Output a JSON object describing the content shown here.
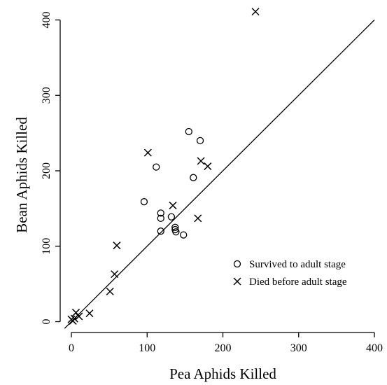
{
  "chart_data": {
    "type": "scatter",
    "title": "",
    "xlabel": "Pea Aphids Killed",
    "ylabel": "Bean Aphids Killed",
    "xlim": [
      -10,
      410
    ],
    "ylim": [
      -10,
      415
    ],
    "xticks": [
      0,
      100,
      200,
      300,
      400
    ],
    "yticks": [
      0,
      100,
      200,
      300,
      400
    ],
    "grid": false,
    "legend": "right, lower-middle",
    "reference_line": {
      "slope": 1,
      "intercept": 0
    },
    "series": [
      {
        "name": "Survived to adult stage",
        "marker": "circle",
        "points": [
          [
            96,
            159
          ],
          [
            112,
            205
          ],
          [
            118,
            144
          ],
          [
            118,
            137
          ],
          [
            118,
            120
          ],
          [
            132,
            139
          ],
          [
            137,
            125
          ],
          [
            137,
            122
          ],
          [
            138,
            119
          ],
          [
            148,
            115
          ],
          [
            155,
            252
          ],
          [
            161,
            191
          ],
          [
            170,
            240
          ]
        ]
      },
      {
        "name": "Died before adult stage",
        "marker": "cross",
        "points": [
          [
            0,
            3
          ],
          [
            2,
            1
          ],
          [
            4,
            4
          ],
          [
            6,
            12
          ],
          [
            10,
            7
          ],
          [
            24,
            11
          ],
          [
            51,
            40
          ],
          [
            57,
            63
          ],
          [
            60,
            101
          ],
          [
            101,
            224
          ],
          [
            134,
            154
          ],
          [
            167,
            137
          ],
          [
            171,
            213
          ],
          [
            180,
            206
          ],
          [
            243,
            411
          ]
        ]
      }
    ]
  }
}
